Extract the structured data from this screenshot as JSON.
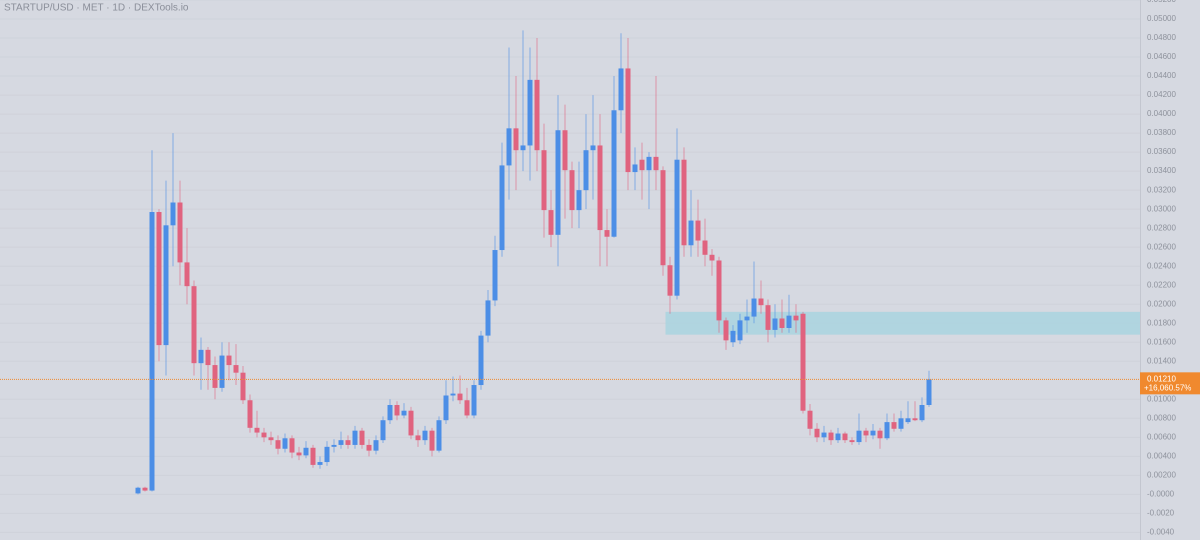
{
  "chart_data": {
    "type": "candlestick",
    "title": "STARTUP/USD · MET · 1D · DEXTools.io",
    "up_color": "#4c8ee6",
    "down_color": "#e0637f",
    "ylim": [
      -0.0048,
      0.052
    ],
    "yticks": [
      {
        "value": 0.052,
        "label": "0.05200"
      },
      {
        "value": 0.05,
        "label": "0.05000"
      },
      {
        "value": 0.048,
        "label": "0.04800"
      },
      {
        "value": 0.046,
        "label": "0.04600"
      },
      {
        "value": 0.044,
        "label": "0.04400"
      },
      {
        "value": 0.042,
        "label": "0.04200"
      },
      {
        "value": 0.04,
        "label": "0.04000"
      },
      {
        "value": 0.038,
        "label": "0.03800"
      },
      {
        "value": 0.036,
        "label": "0.03600"
      },
      {
        "value": 0.034,
        "label": "0.03400"
      },
      {
        "value": 0.032,
        "label": "0.03200"
      },
      {
        "value": 0.03,
        "label": "0.03000"
      },
      {
        "value": 0.028,
        "label": "0.02800"
      },
      {
        "value": 0.026,
        "label": "0.02600"
      },
      {
        "value": 0.024,
        "label": "0.02400"
      },
      {
        "value": 0.022,
        "label": "0.02200"
      },
      {
        "value": 0.02,
        "label": "0.02000"
      },
      {
        "value": 0.018,
        "label": "0.01800"
      },
      {
        "value": 0.016,
        "label": "0.01600"
      },
      {
        "value": 0.014,
        "label": "0.01400"
      },
      {
        "value": 0.01,
        "label": "0.01000"
      },
      {
        "value": 0.008,
        "label": "0.00800"
      },
      {
        "value": 0.006,
        "label": "0.00600"
      },
      {
        "value": 0.004,
        "label": "0.00400"
      },
      {
        "value": 0.002,
        "label": "0.00200"
      },
      {
        "value": 0,
        "label": "-0.0000"
      },
      {
        "value": -0.002,
        "label": "-0.0020"
      },
      {
        "value": -0.004,
        "label": "-0.0040"
      }
    ],
    "grid": true,
    "open": [
      0.0001,
      0.0007,
      0.0004,
      0.0297,
      0.0157,
      0.0283,
      0.0307,
      0.0244,
      0.0219,
      0.0138,
      0.0152,
      0.0136,
      0.0112,
      0.0146,
      0.0136,
      0.0128,
      0.0099,
      0.007,
      0.0065,
      0.006,
      0.0057,
      0.0048,
      0.0059,
      0.0044,
      0.0041,
      0.0049,
      0.0031,
      0.0034,
      0.005,
      0.0052,
      0.0057,
      0.0052,
      0.0067,
      0.0052,
      0.0046,
      0.0057,
      0.0078,
      0.0094,
      0.0083,
      0.0088,
      0.0062,
      0.0057,
      0.0067,
      0.0046,
      0.0078,
      0.0104,
      0.0106,
      0.0099,
      0.0083,
      0.0115,
      0.0167,
      0.0204,
      0.0257,
      0.0346,
      0.0385,
      0.0362,
      0.0367,
      0.0436,
      0.0362,
      0.0299,
      0.0273,
      0.0383,
      0.0341,
      0.0299,
      0.032,
      0.0362,
      0.0367,
      0.0278,
      0.0271,
      0.0404,
      0.0448,
      0.0339,
      0.0352,
      0.0341,
      0.0355,
      0.0341,
      0.0241,
      0.0209,
      0.0352,
      0.0262,
      0.0288,
      0.0267,
      0.0252,
      0.0246,
      0.0183,
      0.016,
      0.0162,
      0.0183,
      0.0187,
      0.0206,
      0.0199,
      0.0173,
      0.0185,
      0.0175,
      0.0188,
      0.019,
      0.0088,
      0.0069,
      0.006,
      0.0065,
      0.0057,
      0.0064,
      0.0057,
      0.0055,
      0.0067,
      0.0062,
      0.0067,
      0.0059,
      0.0076,
      0.0069,
      0.0076,
      0.008,
      0.0078,
      0.0094
    ],
    "high": [
      0.0008,
      0.0008,
      0.0362,
      0.03,
      0.033,
      0.038,
      0.033,
      0.028,
      0.0225,
      0.0165,
      0.0155,
      0.0145,
      0.016,
      0.016,
      0.0158,
      0.0135,
      0.0105,
      0.0088,
      0.007,
      0.0066,
      0.0062,
      0.0064,
      0.0062,
      0.005,
      0.0056,
      0.0052,
      0.004,
      0.0056,
      0.0058,
      0.0066,
      0.0062,
      0.0072,
      0.007,
      0.0058,
      0.0062,
      0.0082,
      0.01,
      0.0098,
      0.0096,
      0.0092,
      0.0068,
      0.0072,
      0.007,
      0.0082,
      0.012,
      0.0124,
      0.0125,
      0.0112,
      0.012,
      0.0172,
      0.0215,
      0.0272,
      0.037,
      0.047,
      0.044,
      0.0488,
      0.047,
      0.048,
      0.039,
      0.032,
      0.042,
      0.041,
      0.035,
      0.035,
      0.04,
      0.042,
      0.04,
      0.03,
      0.044,
      0.0485,
      0.048,
      0.0365,
      0.037,
      0.036,
      0.044,
      0.0345,
      0.025,
      0.0385,
      0.0365,
      0.032,
      0.031,
      0.029,
      0.0258,
      0.025,
      0.0186,
      0.0178,
      0.019,
      0.0205,
      0.0245,
      0.0225,
      0.0205,
      0.02,
      0.0205,
      0.021,
      0.02,
      0.0192,
      0.0095,
      0.0075,
      0.0072,
      0.0068,
      0.007,
      0.0066,
      0.006,
      0.0085,
      0.007,
      0.0074,
      0.007,
      0.0085,
      0.0085,
      0.0088,
      0.0098,
      0.0098,
      0.0102,
      0.013
    ],
    "low": [
      0,
      0.0003,
      0.0003,
      0.014,
      0.0125,
      0.024,
      0.022,
      0.02,
      0.0125,
      0.011,
      0.011,
      0.01,
      0.0108,
      0.012,
      0.0115,
      0.0095,
      0.0065,
      0.006,
      0.0055,
      0.0052,
      0.0042,
      0.0044,
      0.0038,
      0.0036,
      0.0038,
      0.0028,
      0.0027,
      0.003,
      0.0044,
      0.0048,
      0.0048,
      0.0048,
      0.0048,
      0.004,
      0.0042,
      0.0054,
      0.0074,
      0.0078,
      0.008,
      0.0058,
      0.005,
      0.0052,
      0.004,
      0.0044,
      0.0074,
      0.0098,
      0.0095,
      0.008,
      0.008,
      0.011,
      0.016,
      0.0198,
      0.025,
      0.031,
      0.032,
      0.034,
      0.033,
      0.034,
      0.027,
      0.026,
      0.024,
      0.029,
      0.028,
      0.028,
      0.03,
      0.031,
      0.024,
      0.024,
      0.027,
      0.038,
      0.032,
      0.032,
      0.031,
      0.03,
      0.032,
      0.023,
      0.019,
      0.0205,
      0.025,
      0.025,
      0.025,
      0.024,
      0.023,
      0.017,
      0.0152,
      0.0155,
      0.0158,
      0.017,
      0.018,
      0.019,
      0.016,
      0.0165,
      0.017,
      0.017,
      0.017,
      0.0085,
      0.0062,
      0.0055,
      0.0055,
      0.0052,
      0.0054,
      0.0054,
      0.0052,
      0.0052,
      0.0055,
      0.0058,
      0.0048,
      0.0057,
      0.0066,
      0.0066,
      0.0074,
      0.0077,
      0.0076,
      0.0092
    ],
    "close": [
      0.0007,
      0.0004,
      0.0297,
      0.0157,
      0.0283,
      0.0307,
      0.0244,
      0.0219,
      0.0138,
      0.0152,
      0.0136,
      0.0112,
      0.0146,
      0.0136,
      0.0128,
      0.0099,
      0.007,
      0.0065,
      0.006,
      0.0057,
      0.0048,
      0.0059,
      0.0044,
      0.0041,
      0.0049,
      0.0031,
      0.0034,
      0.005,
      0.0052,
      0.0057,
      0.0052,
      0.0067,
      0.0052,
      0.0046,
      0.0057,
      0.0078,
      0.0094,
      0.0083,
      0.0088,
      0.0062,
      0.0057,
      0.0067,
      0.0046,
      0.0078,
      0.0104,
      0.0106,
      0.0099,
      0.0083,
      0.0115,
      0.0167,
      0.0204,
      0.0257,
      0.0346,
      0.0385,
      0.0362,
      0.0367,
      0.0436,
      0.0362,
      0.0299,
      0.0273,
      0.0383,
      0.0341,
      0.0299,
      0.032,
      0.0362,
      0.0367,
      0.0278,
      0.0271,
      0.0404,
      0.0448,
      0.0339,
      0.0347,
      0.0341,
      0.0355,
      0.0341,
      0.0241,
      0.0209,
      0.0352,
      0.0262,
      0.0288,
      0.0267,
      0.0252,
      0.0246,
      0.0183,
      0.0162,
      0.0172,
      0.0183,
      0.0187,
      0.0206,
      0.0199,
      0.0173,
      0.0185,
      0.0175,
      0.0188,
      0.0183,
      0.0088,
      0.0069,
      0.006,
      0.0065,
      0.0057,
      0.0064,
      0.0057,
      0.0055,
      0.0067,
      0.0062,
      0.0067,
      0.0059,
      0.0076,
      0.0069,
      0.008,
      0.008,
      0.0078,
      0.0094,
      0.0121
    ],
    "zone": {
      "low": 0.0168,
      "high": 0.0192,
      "start": 76,
      "color": "#a9d3df"
    },
    "last_price": {
      "value": 0.0121,
      "label": "0.01210",
      "change": "+16,060.57%",
      "color": "#f0892e"
    }
  }
}
